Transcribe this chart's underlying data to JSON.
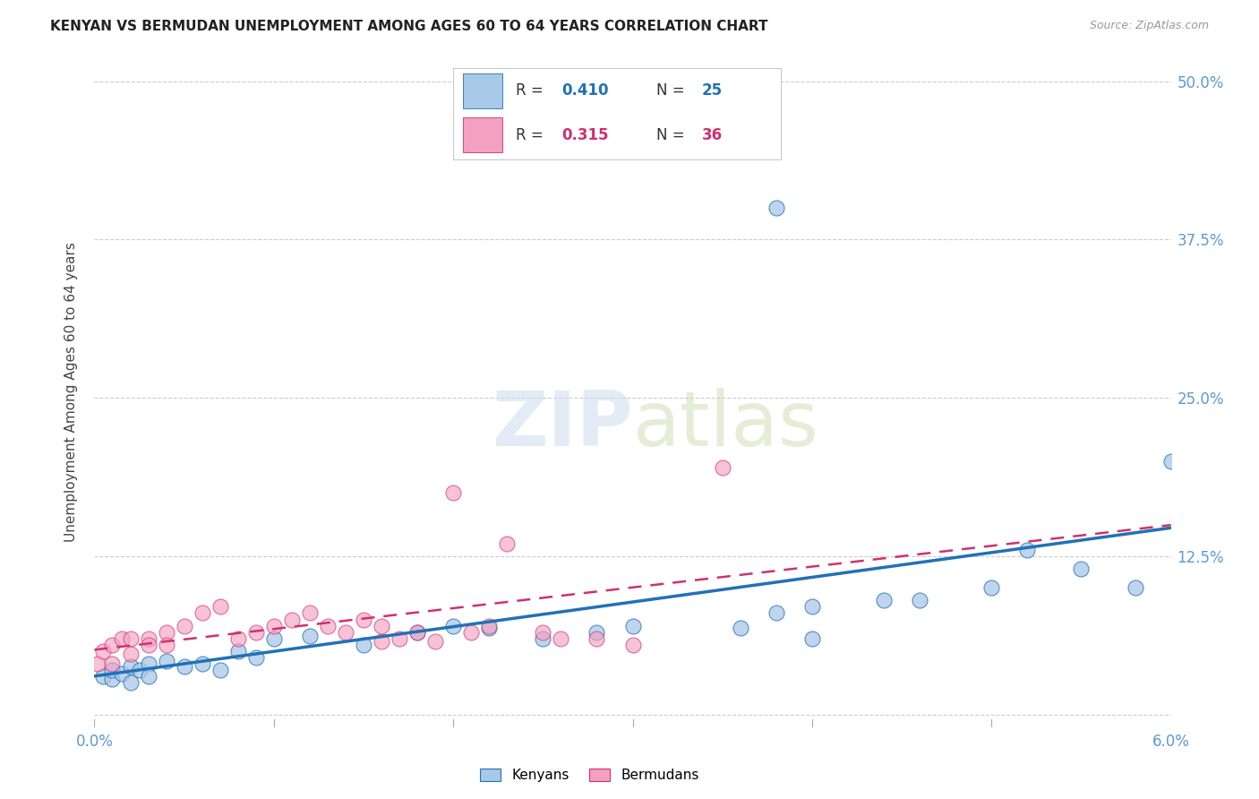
{
  "title": "KENYAN VS BERMUDAN UNEMPLOYMENT AMONG AGES 60 TO 64 YEARS CORRELATION CHART",
  "source": "Source: ZipAtlas.com",
  "ylabel": "Unemployment Among Ages 60 to 64 years",
  "xlim": [
    0.0,
    0.06
  ],
  "ylim": [
    -0.01,
    0.52
  ],
  "yticks": [
    0.0,
    0.125,
    0.25,
    0.375,
    0.5
  ],
  "ytick_labels": [
    "",
    "12.5%",
    "25.0%",
    "37.5%",
    "50.0%"
  ],
  "xtick_positions": [
    0.0,
    0.01,
    0.02,
    0.03,
    0.04,
    0.05,
    0.06
  ],
  "background_color": "#ffffff",
  "grid_color": "#cccccc",
  "kenyan_color": "#a8c8e8",
  "bermudan_color": "#f4a0c0",
  "kenyan_line_color": "#2271b5",
  "bermudan_line_color": "#d03070",
  "right_axis_color": "#5b9bd5",
  "kenyan_x": [
    0.0005,
    0.001,
    0.001,
    0.0015,
    0.002,
    0.002,
    0.0025,
    0.003,
    0.003,
    0.004,
    0.005,
    0.006,
    0.007,
    0.008,
    0.009,
    0.01,
    0.012,
    0.015,
    0.018,
    0.02,
    0.022,
    0.025,
    0.028,
    0.03,
    0.036,
    0.038,
    0.04,
    0.04,
    0.044,
    0.046,
    0.05,
    0.052,
    0.055,
    0.058,
    0.06,
    0.038
  ],
  "kenyan_y": [
    0.03,
    0.028,
    0.035,
    0.032,
    0.038,
    0.025,
    0.035,
    0.04,
    0.03,
    0.042,
    0.038,
    0.04,
    0.035,
    0.05,
    0.045,
    0.06,
    0.062,
    0.055,
    0.065,
    0.07,
    0.068,
    0.06,
    0.065,
    0.07,
    0.068,
    0.08,
    0.085,
    0.06,
    0.09,
    0.09,
    0.1,
    0.13,
    0.115,
    0.1,
    0.2,
    0.4
  ],
  "bermudan_x": [
    0.0002,
    0.0005,
    0.001,
    0.001,
    0.0015,
    0.002,
    0.002,
    0.003,
    0.003,
    0.004,
    0.004,
    0.005,
    0.006,
    0.007,
    0.008,
    0.009,
    0.01,
    0.011,
    0.012,
    0.013,
    0.014,
    0.015,
    0.016,
    0.016,
    0.017,
    0.018,
    0.019,
    0.02,
    0.021,
    0.022,
    0.023,
    0.025,
    0.026,
    0.028,
    0.03,
    0.035
  ],
  "bermudan_y": [
    0.04,
    0.05,
    0.055,
    0.04,
    0.06,
    0.06,
    0.048,
    0.06,
    0.055,
    0.065,
    0.055,
    0.07,
    0.08,
    0.085,
    0.06,
    0.065,
    0.07,
    0.075,
    0.08,
    0.07,
    0.065,
    0.075,
    0.058,
    0.07,
    0.06,
    0.065,
    0.058,
    0.175,
    0.065,
    0.07,
    0.135,
    0.065,
    0.06,
    0.06,
    0.055,
    0.195
  ]
}
